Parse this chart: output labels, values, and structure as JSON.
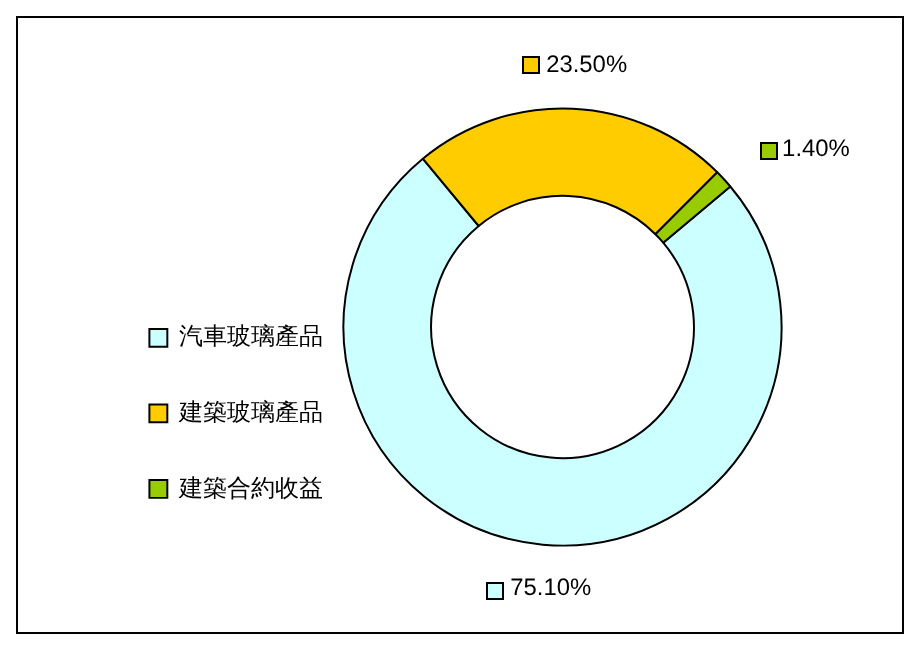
{
  "chart_data": {
    "type": "donut",
    "categories": [
      "汽車玻璃產品",
      "建築玻璃產品",
      "建築合約收益"
    ],
    "values": [
      75.1,
      23.5,
      1.4
    ],
    "colors": [
      "#ccffff",
      "#ffcc00",
      "#99cc00"
    ],
    "value_labels": [
      "75.10%",
      "23.50%",
      "1.40%"
    ],
    "legend": "left"
  }
}
